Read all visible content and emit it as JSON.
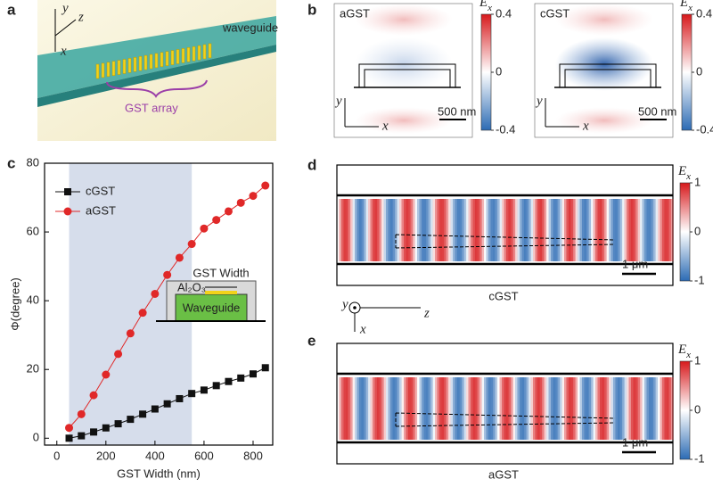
{
  "panel_letters": [
    "a",
    "b",
    "c",
    "d",
    "e"
  ],
  "panel_a": {
    "axis_labels": [
      "y",
      "z",
      "x"
    ],
    "waveguide_label": "waveguide",
    "array_label": "GST array"
  },
  "panel_b": {
    "titles": [
      "aGST",
      "cGST"
    ],
    "scale_bar": "500 nm",
    "axis_labels": [
      "y",
      "x"
    ],
    "colorbar_label": {
      "symbol": "E",
      "subscript": "x"
    },
    "clim": [
      -0.4,
      0.4
    ],
    "colorbar_ticks": [
      0.4,
      0,
      -0.4
    ]
  },
  "panel_de": {
    "titles": [
      "cGST",
      "aGST"
    ],
    "scale_bar": "1 μm",
    "axis_labels": [
      "y",
      "z",
      "x"
    ],
    "colorbar_label": {
      "symbol": "E",
      "subscript": "x"
    },
    "clim": [
      -1,
      1
    ],
    "colorbar_ticks": [
      1,
      0,
      -1
    ]
  },
  "chart_data": {
    "type": "line",
    "x_label": "GST Width (nm)",
    "y_label": "Φ(degree)",
    "x": [
      50,
      100,
      150,
      200,
      250,
      300,
      350,
      400,
      450,
      500,
      550,
      600,
      650,
      700,
      750,
      800,
      850
    ],
    "series": [
      {
        "name": "cGST",
        "color": "#111111",
        "marker": "square",
        "values": [
          0,
          0.7,
          1.8,
          3,
          4.2,
          5.5,
          7,
          8.5,
          10,
          11.5,
          13,
          14,
          15.3,
          16.5,
          17.5,
          18.7,
          20.5
        ]
      },
      {
        "name": "aGST",
        "color": "#e02828",
        "marker": "circle",
        "values": [
          3,
          7,
          12.5,
          18.5,
          24.5,
          30.5,
          36.5,
          42,
          47.5,
          52.5,
          56.5,
          61,
          63.5,
          66,
          68.5,
          70.5,
          73.5
        ]
      }
    ],
    "xlim": [
      -50,
      880
    ],
    "ylim": [
      -2,
      80
    ],
    "xticks": [
      0,
      200,
      400,
      600,
      800
    ],
    "yticks": [
      0,
      20,
      40,
      60,
      80
    ],
    "grid": false,
    "legend": "upper left",
    "shaded_range": [
      50,
      550
    ],
    "shade_color": "#d6ddeb",
    "inset": {
      "width_label": "GST Width",
      "cladding_label": "Al₂O₃",
      "core_label": "Waveguide"
    }
  }
}
